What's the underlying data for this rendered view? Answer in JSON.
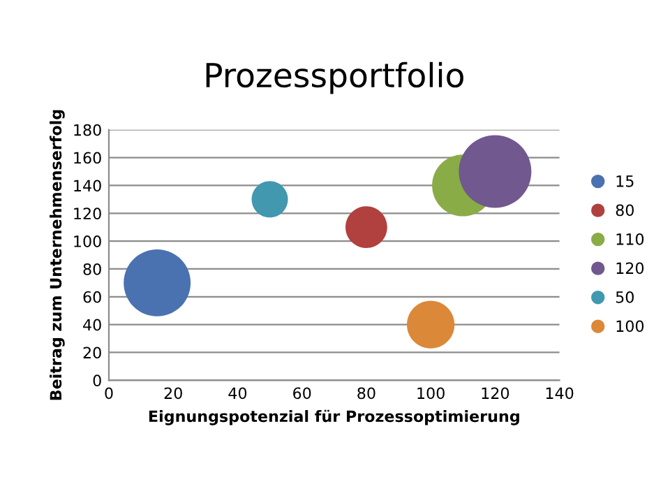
{
  "chart_data": {
    "type": "bubble",
    "title": "Prozessportfolio",
    "xlabel": "Eignungspotenzial für Prozessoptimierung",
    "ylabel": "Beitrag zum Unternehmenserfolg",
    "series": [
      {
        "name": "15",
        "color": "#4a72b0",
        "x": [
          15
        ],
        "values": [
          70
        ],
        "sizes": [
          0.85
        ]
      },
      {
        "name": "80",
        "color": "#b0413e",
        "x": [
          80
        ],
        "values": [
          110
        ],
        "sizes": [
          0.33
        ]
      },
      {
        "name": "110",
        "color": "#8aac46",
        "x": [
          110
        ],
        "values": [
          140
        ],
        "sizes": [
          0.72
        ]
      },
      {
        "name": "120",
        "color": "#71588f",
        "x": [
          120
        ],
        "values": [
          150
        ],
        "sizes": [
          1
        ]
      },
      {
        "name": "50",
        "color": "#4198af",
        "x": [
          50
        ],
        "values": [
          130
        ],
        "sizes": [
          0.25
        ]
      },
      {
        "name": "100",
        "color": "#db8838",
        "x": [
          100
        ],
        "values": [
          40
        ],
        "sizes": [
          0.43
        ]
      }
    ],
    "xlim": [
      0,
      140
    ],
    "xticks": [
      0,
      20,
      40,
      60,
      80,
      100,
      120,
      140
    ],
    "ylim": [
      0,
      180
    ],
    "yticks": [
      0,
      20,
      40,
      60,
      80,
      100,
      120,
      140,
      160,
      180
    ],
    "grid": "y",
    "legend": "right"
  }
}
